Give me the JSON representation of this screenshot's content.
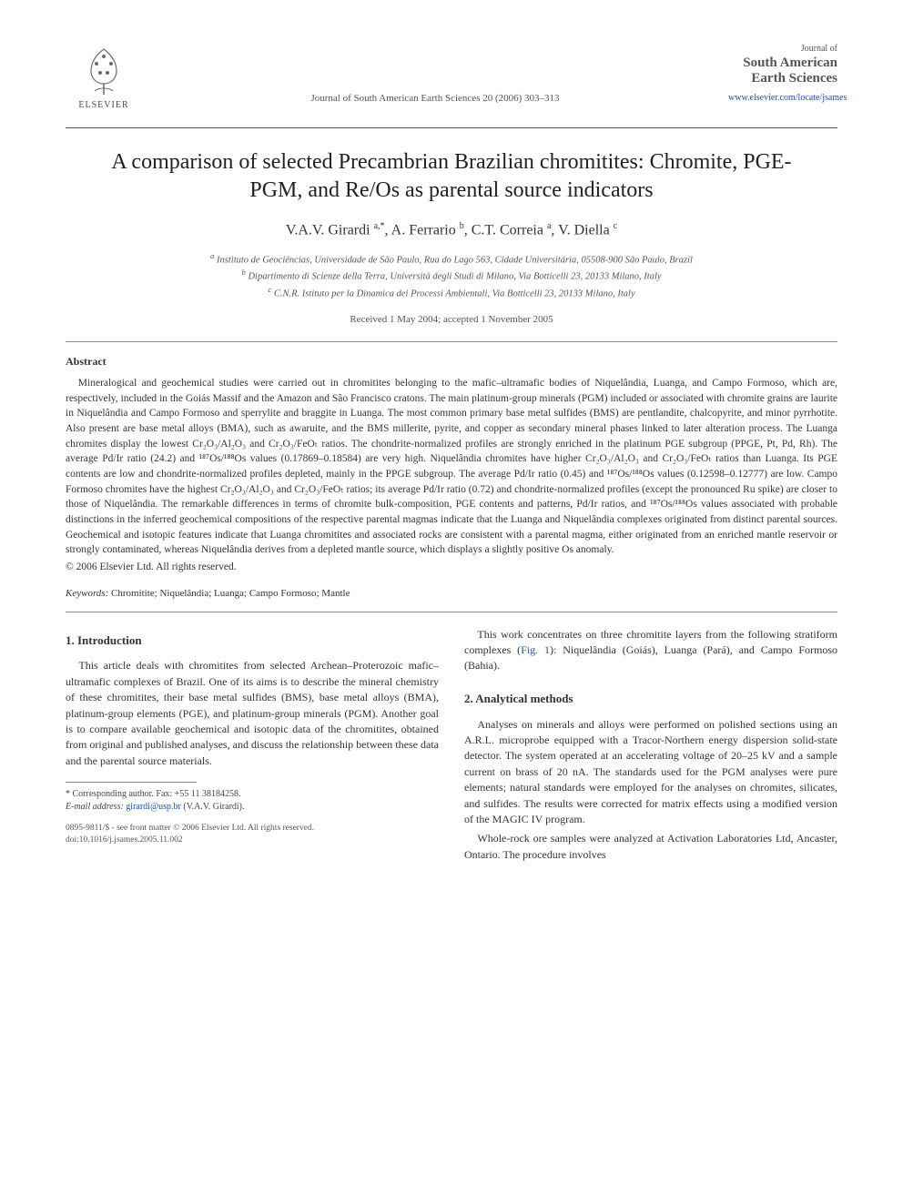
{
  "header": {
    "publisher_name": "ELSEVIER",
    "journal_ref": "Journal of South American Earth Sciences 20 (2006) 303–313",
    "journal_label_small": "Journal of",
    "journal_label_big": "South American Earth Sciences",
    "journal_url": "www.elsevier.com/locate/jsames"
  },
  "title": "A comparison of selected Precambrian Brazilian chromitites: Chromite, PGE-PGM, and Re/Os as parental source indicators",
  "authors_html": "V.A.V. Girardi <sup>a,*</sup>, A. Ferrario <sup>b</sup>, C.T. Correia <sup>a</sup>, V. Diella <sup>c</sup>",
  "affiliations": {
    "a": "Instituto de Geociências, Universidade de São Paulo, Rua do Lago 563, Cidade Universitária, 05508-900 São Paulo, Brazil",
    "b": "Dipartimento di Scienze della Terra, Università degli Studi di Milano, Via Botticelli 23, 20133 Milano, Italy",
    "c": "C.N.R. Istituto per la Dinamica dei Processi Ambientali, Via Botticelli 23, 20133 Milano, Italy"
  },
  "dates": "Received 1 May 2004; accepted 1 November 2005",
  "abstract": {
    "heading": "Abstract",
    "body": "Mineralogical and geochemical studies were carried out in chromitites belonging to the mafic–ultramafic bodies of Niquelândia, Luanga, and Campo Formoso, which are, respectively, included in the Goiás Massif and the Amazon and São Francisco cratons. The main platinum-group minerals (PGM) included or associated with chromite grains are laurite in Niquelândia and Campo Formoso and sperrylite and braggite in Luanga. The most common primary base metal sulfides (BMS) are pentlandite, chalcopyrite, and minor pyrrhotite. Also present are base metal alloys (BMA), such as awaruite, and the BMS millerite, pyrite, and copper as secondary mineral phases linked to later alteration process. The Luanga chromites display the lowest Cr₂O₃/Al₂O₃ and Cr₂O₃/FeOₜ ratios. The chondrite-normalized profiles are strongly enriched in the platinum PGE subgroup (PPGE, Pt, Pd, Rh). The average Pd/Ir ratio (24.2) and ¹⁸⁷Os/¹⁸⁸Os values (0.17869–0.18584) are very high. Niquelândia chromites have higher Cr₂O₃/Al₂O₃ and Cr₂O₃/FeOₜ ratios than Luanga. Its PGE contents are low and chondrite-normalized profiles depleted, mainly in the PPGE subgroup. The average Pd/Ir ratio (0.45) and ¹⁸⁷Os/¹⁸⁸Os values (0.12598–0.12777) are low. Campo Formoso chromites have the highest Cr₂O₃/Al₂O₃ and Cr₂O₃/FeOₜ ratios; its average Pd/Ir ratio (0.72) and chondrite-normalized profiles (except the pronounced Ru spike) are closer to those of Niquelândia. The remarkable differences in terms of chromite bulk-composition, PGE contents and patterns, Pd/Ir ratios, and ¹⁸⁷Os/¹⁸⁸Os values associated with probable distinctions in the inferred geochemical compositions of the respective parental magmas indicate that the Luanga and Niquelândia complexes originated from distinct parental sources. Geochemical and isotopic features indicate that Luanga chromitites and associated rocks are consistent with a parental magma, either originated from an enriched mantle reservoir or strongly contaminated, whereas Niquelândia derives from a depleted mantle source, which displays a slightly positive Os anomaly.",
    "copyright": "© 2006 Elsevier Ltd. All rights reserved."
  },
  "keywords": {
    "label": "Keywords:",
    "list": "Chromitite; Niquelândia; Luanga; Campo Formoso; Mantle"
  },
  "sections": {
    "intro": {
      "heading": "1. Introduction",
      "p1": "This article deals with chromitites from selected Archean–Proterozoic mafic–ultramafic complexes of Brazil. One of its aims is to describe the mineral chemistry of these chromitites, their base metal sulfides (BMS), base metal alloys (BMA), platinum-group elements (PGE), and platinum-group minerals (PGM). Another goal is to compare available geochemical and isotopic data of the chromitites, obtained from original and published analyses, and discuss the relationship between these data and the parental source materials.",
      "p2a": "This work concentrates on three chromitite layers from the following stratiform complexes (",
      "figref": "Fig. 1",
      "p2b": "): Niquelândia (Goiás), Luanga (Pará), and Campo Formoso (Bahia)."
    },
    "methods": {
      "heading": "2. Analytical methods",
      "p1": "Analyses on minerals and alloys were performed on polished sections using an A.R.L. microprobe equipped with a Tracor-Northern energy dispersion solid-state detector. The system operated at an accelerating voltage of 20–25 kV and a sample current on brass of 20 nA. The standards used for the PGM analyses were pure elements; natural standards were employed for the analyses on chromites, silicates, and sulfides. The results were corrected for matrix effects using a modified version of the MAGIC IV program.",
      "p2": "Whole-rock ore samples were analyzed at Activation Laboratories Ltd, Ancaster, Ontario. The procedure involves"
    }
  },
  "footnotes": {
    "corr_label": "* Corresponding author. Fax: +55 11 38184258.",
    "email_label": "E-mail address:",
    "email": "girardi@usp.br",
    "email_tail": "(V.A.V. Girardi)."
  },
  "footer": {
    "line1": "0895-9811/$ - see front matter © 2006 Elsevier Ltd. All rights reserved.",
    "line2": "doi:10.1016/j.jsames.2005.11.002"
  },
  "colors": {
    "text": "#333333",
    "link": "#1a4fb5",
    "rule": "#555555",
    "elsevier_orange": "#e9711c"
  }
}
